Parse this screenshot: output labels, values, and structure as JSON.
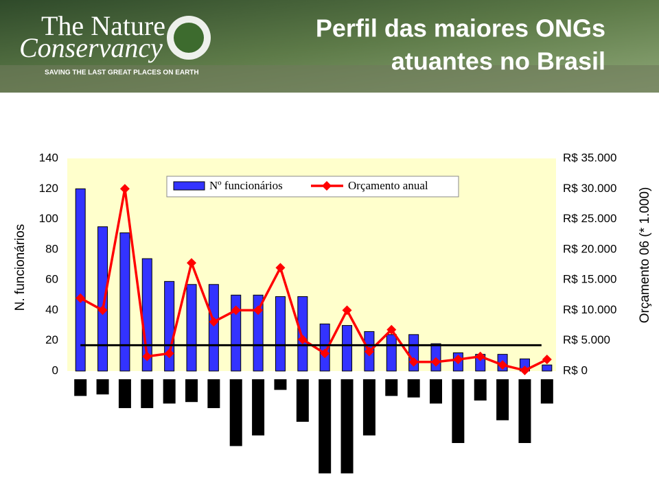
{
  "header": {
    "logo_line1": "The Nature",
    "logo_line2": "Conservancy",
    "tagline": "SAVING THE LAST GREAT PLACES ON EARTH",
    "title_line1": "Perfil das maiores ONGs",
    "title_line2": "atuantes no Brasil"
  },
  "chart_data": {
    "type": "bar-line",
    "categories": [
      null,
      null,
      null,
      null,
      null,
      null,
      null,
      null,
      null,
      null,
      null,
      null,
      null,
      null,
      null,
      null,
      null,
      null,
      null,
      null,
      null,
      null
    ],
    "series": [
      {
        "name": "Nº funcionários",
        "type": "bar",
        "color": "#3333ff",
        "values": [
          120,
          95,
          91,
          74,
          59,
          57,
          57,
          50,
          50,
          49,
          49,
          31,
          30,
          26,
          24,
          24,
          18,
          12,
          11,
          11,
          8,
          4
        ]
      },
      {
        "name": "Orçamento anual",
        "type": "line",
        "axis": "y2",
        "color": "#ff0000",
        "values": [
          12000,
          10000,
          30000,
          2400,
          2900,
          17800,
          8100,
          10000,
          10000,
          17000,
          5200,
          2900,
          10000,
          3200,
          6800,
          1500,
          1500,
          1900,
          2400,
          1000,
          100,
          1900
        ]
      }
    ],
    "lower_values": [
      11,
      10,
      19,
      19,
      16,
      15,
      19,
      44,
      37,
      7,
      28,
      62,
      62,
      37,
      11,
      12,
      16,
      42,
      14,
      27,
      42,
      16
    ],
    "lower_color": "#000000",
    "reference_line": 17,
    "ylabel": "N. funcionários",
    "y2label": "Orçamento 06 (* 1.000)",
    "ylim": [
      0,
      140
    ],
    "yticks": [
      0,
      20,
      40,
      60,
      80,
      100,
      120,
      140
    ],
    "y2lim": [
      0,
      35000
    ],
    "y2ticks": [
      {
        "value": 0,
        "label": "R$ 0"
      },
      {
        "value": 5000,
        "label": "R$ 5.000"
      },
      {
        "value": 10000,
        "label": "R$ 10.000"
      },
      {
        "value": 15000,
        "label": "R$ 15.000"
      },
      {
        "value": 20000,
        "label": "R$ 20.000"
      },
      {
        "value": 25000,
        "label": "R$ 25.000"
      },
      {
        "value": 30000,
        "label": "R$ 30.000"
      },
      {
        "value": 35000,
        "label": "R$ 35.000"
      }
    ],
    "grid": false,
    "legend": "top"
  }
}
